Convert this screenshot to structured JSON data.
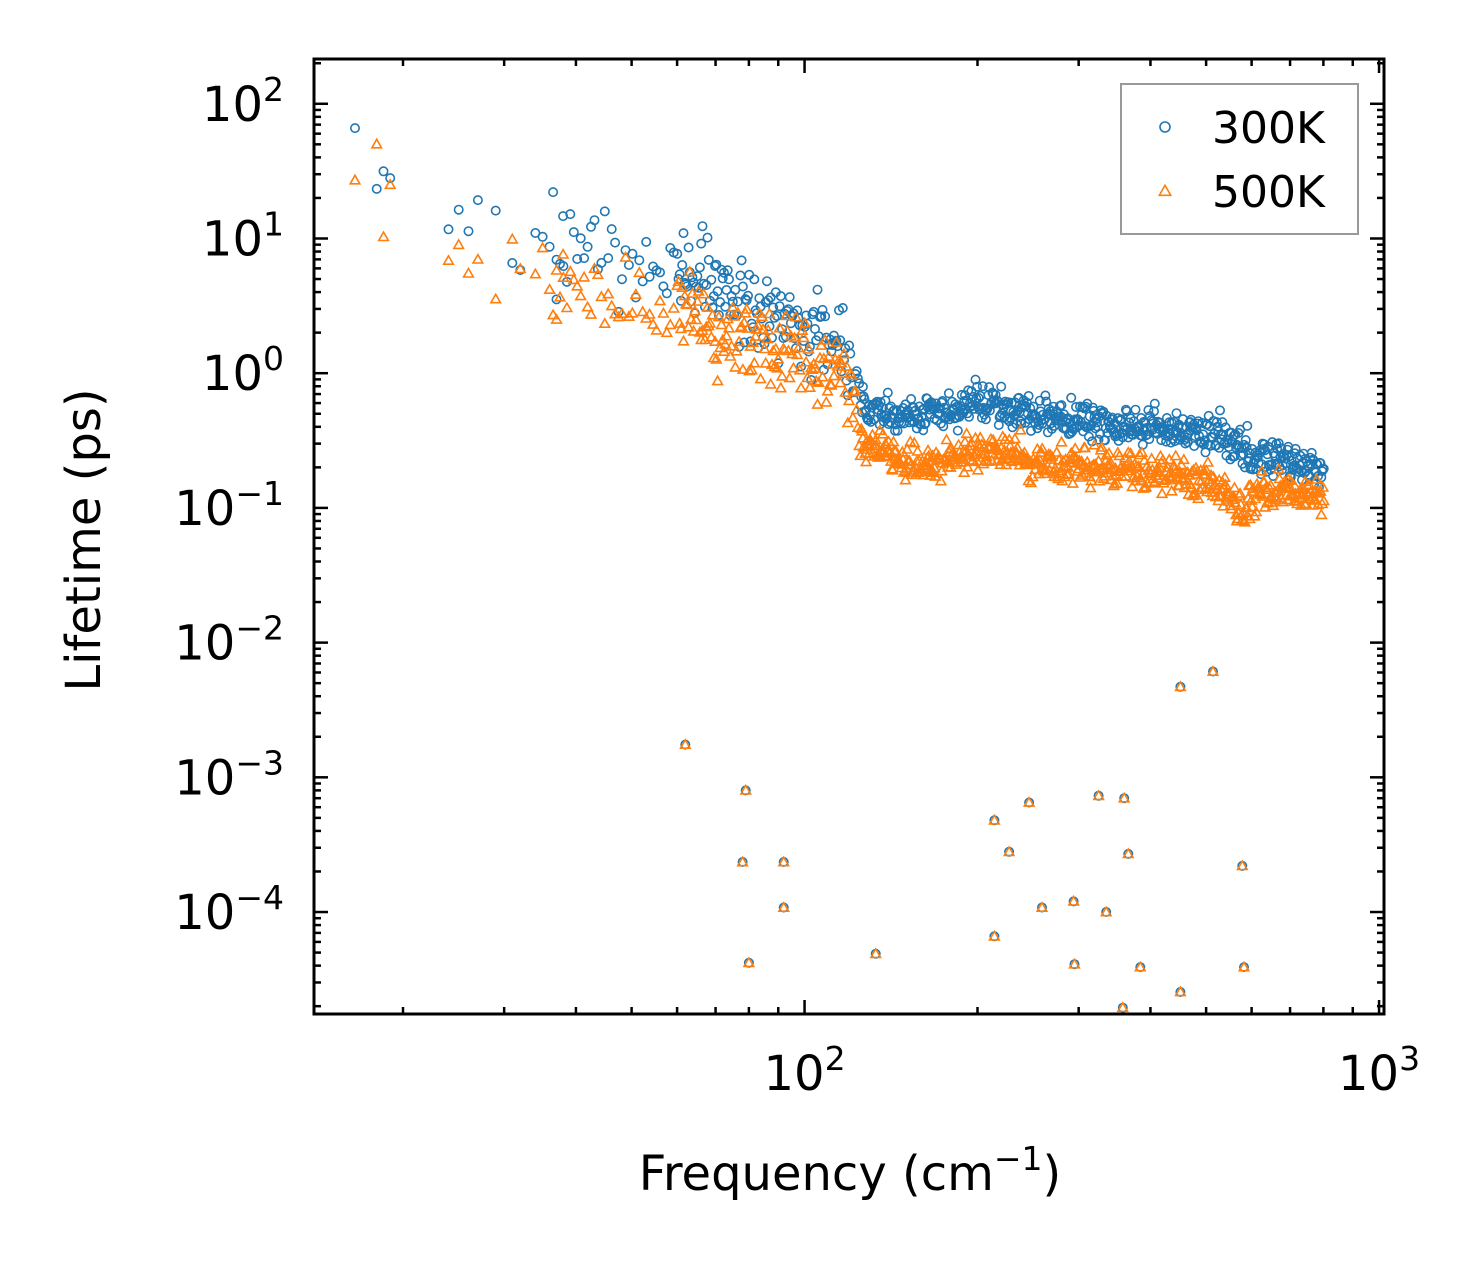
{
  "chart_data": {
    "type": "scatter",
    "title": "",
    "xlabel": "Frequency (cm",
    "xlabel_sup": "−1",
    "xlabel_close": ")",
    "ylabel": "Lifetime (ps)",
    "xscale": "log",
    "yscale": "log",
    "xlim": [
      14,
      1020
    ],
    "ylim": [
      1.75e-05,
      215
    ],
    "x_ticks": [
      {
        "value": 100,
        "base": "10",
        "exp": "2"
      },
      {
        "value": 1000,
        "base": "10",
        "exp": "3"
      }
    ],
    "y_ticks": [
      {
        "value": 100,
        "base": "10",
        "exp": "2"
      },
      {
        "value": 10,
        "base": "10",
        "exp": "1"
      },
      {
        "value": 1,
        "base": "10",
        "exp": "0"
      },
      {
        "value": 0.1,
        "base": "10",
        "exp": "−1"
      },
      {
        "value": 0.01,
        "base": "10",
        "exp": "−2"
      },
      {
        "value": 0.001,
        "base": "10",
        "exp": "−3"
      },
      {
        "value": 0.0001,
        "base": "10",
        "exp": "−4"
      }
    ],
    "legend": {
      "position": "upper-right",
      "frame": true
    },
    "series": [
      {
        "name": "300K",
        "marker": "circle",
        "color": "#1f77b4",
        "trend": [
          [
            16.5,
            45
          ],
          [
            19,
            25
          ],
          [
            22,
            15
          ],
          [
            27,
            10
          ],
          [
            32,
            9
          ],
          [
            36,
            9
          ],
          [
            40,
            8
          ],
          [
            45,
            7.5
          ],
          [
            50,
            7
          ],
          [
            55,
            6.5
          ],
          [
            60,
            6
          ],
          [
            65,
            5.5
          ],
          [
            70,
            4.6
          ],
          [
            75,
            3.8
          ],
          [
            80,
            3.2
          ],
          [
            85,
            2.8
          ],
          [
            90,
            2.5
          ],
          [
            95,
            2.3
          ],
          [
            100,
            2.1
          ],
          [
            105,
            1.8
          ],
          [
            110,
            1.6
          ],
          [
            115,
            1.4
          ],
          [
            120,
            1.3
          ],
          [
            123,
            0.85
          ],
          [
            126,
            0.6
          ],
          [
            135,
            0.52
          ],
          [
            150,
            0.48
          ],
          [
            170,
            0.5
          ],
          [
            190,
            0.55
          ],
          [
            210,
            0.62
          ],
          [
            230,
            0.55
          ],
          [
            260,
            0.48
          ],
          [
            300,
            0.44
          ],
          [
            350,
            0.4
          ],
          [
            400,
            0.38
          ],
          [
            450,
            0.37
          ],
          [
            500,
            0.36
          ],
          [
            530,
            0.34
          ],
          [
            560,
            0.3
          ],
          [
            580,
            0.25
          ],
          [
            620,
            0.22
          ],
          [
            680,
            0.24
          ],
          [
            720,
            0.22
          ],
          [
            760,
            0.2
          ],
          [
            800,
            0.19
          ]
        ],
        "scatter_spread": 0.55,
        "low_points": [
          [
            62,
            0.00175
          ],
          [
            79,
            0.0008
          ],
          [
            78,
            0.000235
          ],
          [
            92,
            0.000235
          ],
          [
            92,
            0.000108
          ],
          [
            80,
            4.2e-05
          ],
          [
            133,
            4.9e-05
          ],
          [
            214,
            0.00048
          ],
          [
            214,
            6.6e-05
          ],
          [
            227,
            0.00028
          ],
          [
            246,
            0.00065
          ],
          [
            259,
            0.000108
          ],
          [
            294,
            0.00012
          ],
          [
            295,
            4.1e-05
          ],
          [
            325,
            0.00073
          ],
          [
            335,
            0.0001
          ],
          [
            360,
            0.0007
          ],
          [
            366,
            0.00027
          ],
          [
            358,
            1.95e-05
          ],
          [
            384,
            3.9e-05
          ],
          [
            451,
            0.0047
          ],
          [
            451,
            2.55e-05
          ],
          [
            514,
            0.0061
          ],
          [
            578,
            0.00022
          ],
          [
            582,
            3.9e-05
          ]
        ]
      },
      {
        "name": "500K",
        "marker": "triangle",
        "color": "#ff7f0e",
        "trend": [
          [
            16.5,
            32
          ],
          [
            19,
            18
          ],
          [
            22,
            9
          ],
          [
            27,
            6
          ],
          [
            32,
            5
          ],
          [
            36,
            4
          ],
          [
            40,
            3.8
          ],
          [
            45,
            3.5
          ],
          [
            50,
            3.2
          ],
          [
            55,
            3
          ],
          [
            60,
            2.8
          ],
          [
            65,
            2.6
          ],
          [
            70,
            2.3
          ],
          [
            75,
            2
          ],
          [
            80,
            1.8
          ],
          [
            85,
            1.6
          ],
          [
            90,
            1.45
          ],
          [
            95,
            1.35
          ],
          [
            100,
            1.25
          ],
          [
            105,
            1.1
          ],
          [
            110,
            1
          ],
          [
            115,
            0.9
          ],
          [
            120,
            0.8
          ],
          [
            123,
            0.42
          ],
          [
            126,
            0.3
          ],
          [
            135,
            0.27
          ],
          [
            150,
            0.22
          ],
          [
            170,
            0.22
          ],
          [
            190,
            0.24
          ],
          [
            210,
            0.28
          ],
          [
            230,
            0.25
          ],
          [
            260,
            0.21
          ],
          [
            300,
            0.2
          ],
          [
            350,
            0.19
          ],
          [
            400,
            0.18
          ],
          [
            450,
            0.17
          ],
          [
            500,
            0.16
          ],
          [
            530,
            0.14
          ],
          [
            560,
            0.11
          ],
          [
            580,
            0.09
          ],
          [
            620,
            0.13
          ],
          [
            680,
            0.14
          ],
          [
            720,
            0.13
          ],
          [
            760,
            0.12
          ],
          [
            800,
            0.11
          ]
        ],
        "scatter_spread": 0.55,
        "low_points": [
          [
            62,
            0.00175
          ],
          [
            79,
            0.0008
          ],
          [
            78,
            0.000235
          ],
          [
            92,
            0.000235
          ],
          [
            92,
            0.000108
          ],
          [
            80,
            4.2e-05
          ],
          [
            133,
            4.9e-05
          ],
          [
            214,
            0.00048
          ],
          [
            214,
            6.6e-05
          ],
          [
            227,
            0.00028
          ],
          [
            246,
            0.00065
          ],
          [
            259,
            0.000108
          ],
          [
            294,
            0.00012
          ],
          [
            295,
            4.1e-05
          ],
          [
            325,
            0.00073
          ],
          [
            335,
            0.0001
          ],
          [
            360,
            0.0007
          ],
          [
            366,
            0.00027
          ],
          [
            358,
            1.95e-05
          ],
          [
            384,
            3.9e-05
          ],
          [
            451,
            0.0047
          ],
          [
            451,
            2.55e-05
          ],
          [
            514,
            0.0061
          ],
          [
            578,
            0.00022
          ],
          [
            582,
            3.9e-05
          ]
        ]
      }
    ]
  }
}
